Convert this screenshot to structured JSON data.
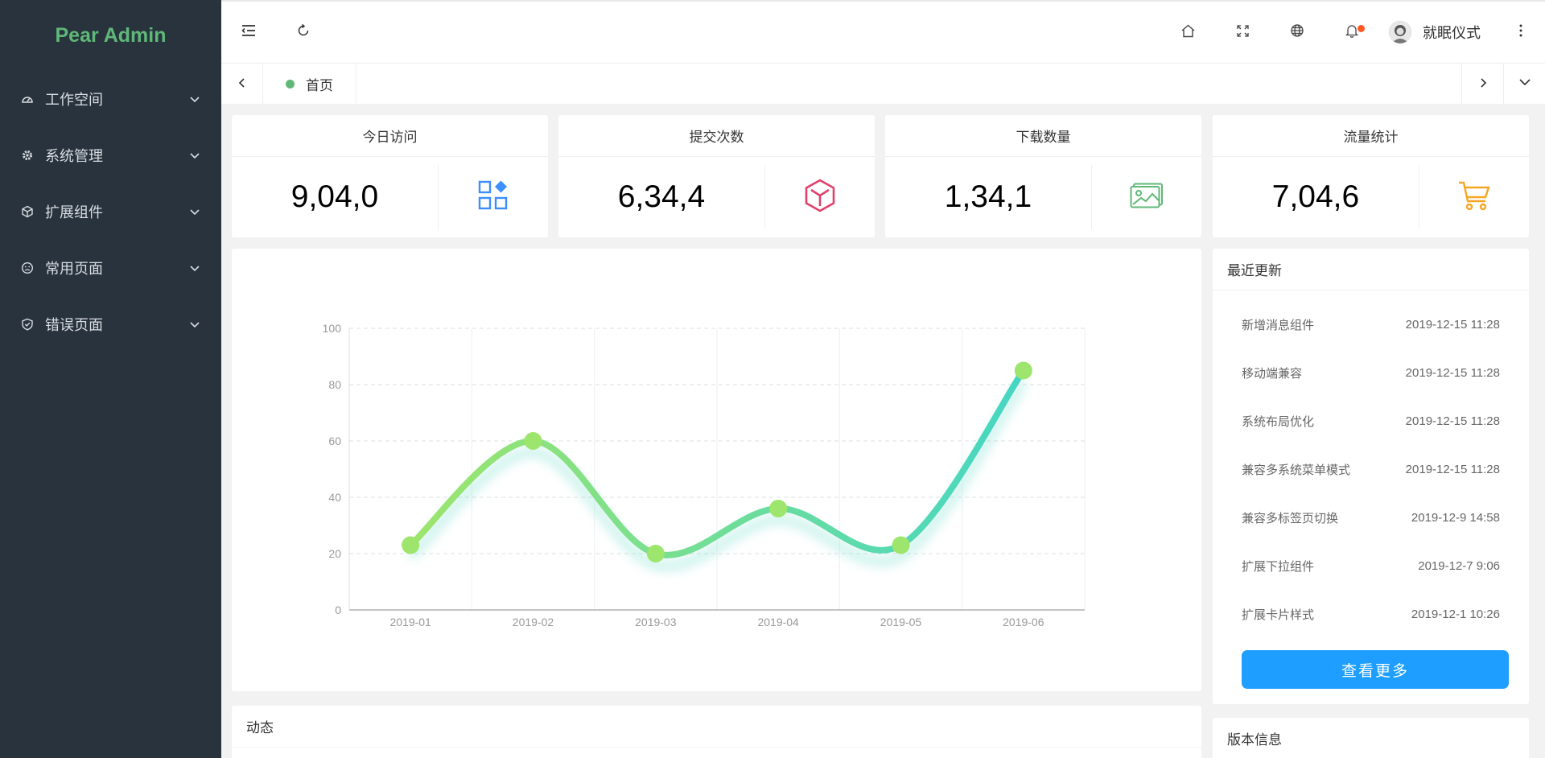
{
  "app": {
    "title": "Pear Admin"
  },
  "sidebar": {
    "items": [
      {
        "label": "工作空间",
        "icon": "dashboard-icon"
      },
      {
        "label": "系统管理",
        "icon": "gear-icon"
      },
      {
        "label": "扩展组件",
        "icon": "cube-icon"
      },
      {
        "label": "常用页面",
        "icon": "face-icon"
      },
      {
        "label": "错误页面",
        "icon": "shield-icon"
      }
    ]
  },
  "header": {
    "user_name": "就眠仪式",
    "has_notification": true
  },
  "tabs": {
    "items": [
      {
        "label": "首页",
        "active": true
      }
    ]
  },
  "stats": [
    {
      "title": "今日访问",
      "value": "9,04,0",
      "icon": "apps-icon",
      "color": "#3d8eff"
    },
    {
      "title": "提交次数",
      "value": "6,34,4",
      "icon": "box-icon",
      "color": "#e0416a"
    },
    {
      "title": "下载数量",
      "value": "1,34,1",
      "icon": "picture-icon",
      "color": "#5fb878"
    },
    {
      "title": "流量统计",
      "value": "7,04,6",
      "icon": "cart-icon",
      "color": "#f5a623"
    }
  ],
  "chart_data": {
    "type": "line",
    "categories": [
      "2019-01",
      "2019-02",
      "2019-03",
      "2019-04",
      "2019-05",
      "2019-06"
    ],
    "values": [
      23,
      60,
      20,
      36,
      23,
      85
    ],
    "ylim": [
      0,
      100
    ],
    "yticks": [
      "0",
      "20",
      "40",
      "60",
      "80",
      "100"
    ],
    "smooth": true,
    "grid": true,
    "colors": [
      "#9de56c",
      "#45d6c4"
    ]
  },
  "updates": {
    "title": "最近更新",
    "items": [
      {
        "title": "新增消息组件",
        "date": "2019-12-15 11:28"
      },
      {
        "title": "移动端兼容",
        "date": "2019-12-15 11:28"
      },
      {
        "title": "系统布局优化",
        "date": "2019-12-15 11:28"
      },
      {
        "title": "兼容多系统菜单模式",
        "date": "2019-12-15 11:28"
      },
      {
        "title": "兼容多标签页切换",
        "date": "2019-12-9 14:58"
      },
      {
        "title": "扩展下拉组件",
        "date": "2019-12-7 9:06"
      },
      {
        "title": "扩展卡片样式",
        "date": "2019-12-1 10:26"
      }
    ],
    "more_label": "查看更多"
  },
  "dynamics": {
    "title": "动态"
  },
  "version": {
    "title": "版本信息"
  }
}
